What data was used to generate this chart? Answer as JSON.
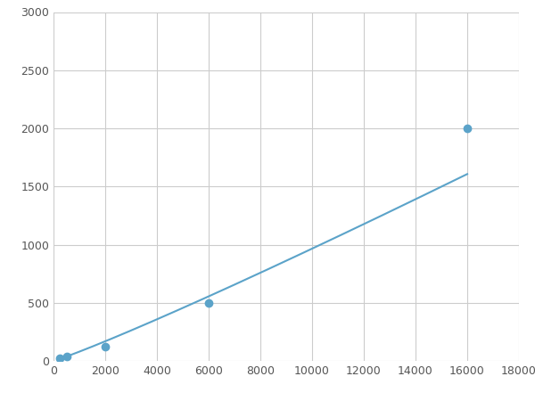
{
  "x_points": [
    250,
    500,
    2000,
    6000,
    16000
  ],
  "y_points": [
    20,
    40,
    125,
    500,
    2000
  ],
  "line_color": "#5ba3c9",
  "marker_color": "#5ba3c9",
  "marker_size": 6,
  "linewidth": 1.5,
  "xlim": [
    0,
    18000
  ],
  "ylim": [
    0,
    3000
  ],
  "xticks": [
    0,
    2000,
    4000,
    6000,
    8000,
    10000,
    12000,
    14000,
    16000,
    18000
  ],
  "yticks": [
    0,
    500,
    1000,
    1500,
    2000,
    2500,
    3000
  ],
  "grid_color": "#cccccc",
  "grid_linewidth": 0.8,
  "background_color": "#ffffff",
  "figsize": [
    6.0,
    4.5
  ],
  "dpi": 100
}
